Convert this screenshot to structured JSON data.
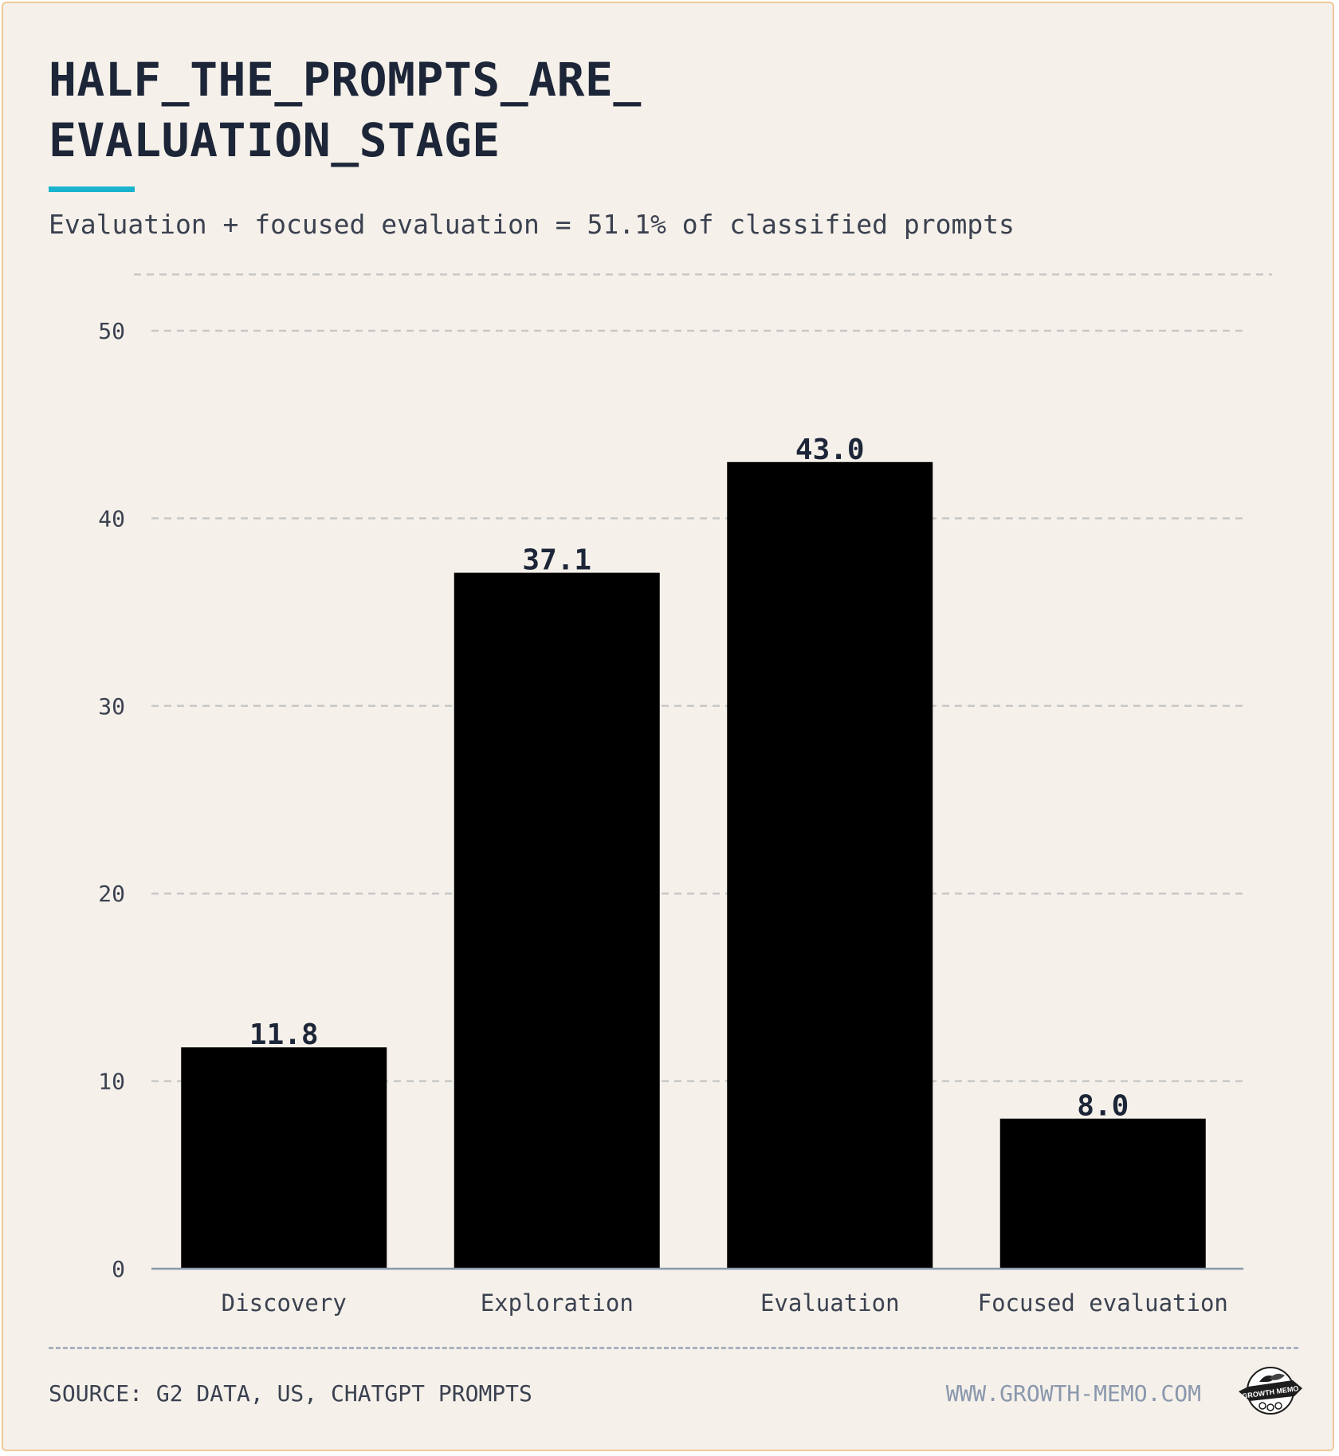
{
  "header": {
    "title_line1": "HALF_THE_PROMPTS_ARE_",
    "title_line2": "EVALUATION_STAGE",
    "subtitle": "Evaluation + focused evaluation = 51.1% of classified prompts",
    "accent_color": "#1ab3cf"
  },
  "chart_data": {
    "type": "bar",
    "categories": [
      "Discovery",
      "Exploration",
      "Evaluation",
      "Focused evaluation"
    ],
    "values": [
      11.8,
      37.1,
      43.0,
      8.0
    ],
    "value_labels": [
      "11.8",
      "37.1",
      "43.0",
      "8.0"
    ],
    "title": "HALF_THE_PROMPTS_ARE_EVALUATION_STAGE",
    "subtitle": "Evaluation + focused evaluation = 51.1% of classified prompts",
    "xlabel": "",
    "ylabel": "",
    "ylim": [
      0,
      53
    ],
    "yticks": [
      0,
      10,
      20,
      30,
      40,
      50
    ],
    "grid": true,
    "legend": "none",
    "bar_color": "#000000"
  },
  "footer": {
    "source": "SOURCE: G2 DATA, US, CHATGPT PROMPTS",
    "website": "WWW.GROWTH-MEMO.COM",
    "logo_text": "GROWTH MEMO"
  },
  "colors": {
    "background": "#f5f1ea",
    "border": "#f0c89a",
    "text_dark": "#1d2638",
    "text_muted": "#3b4150",
    "grid": "#c8c8c8",
    "axis_line": "#8a97ad",
    "website": "#8a97ad"
  }
}
